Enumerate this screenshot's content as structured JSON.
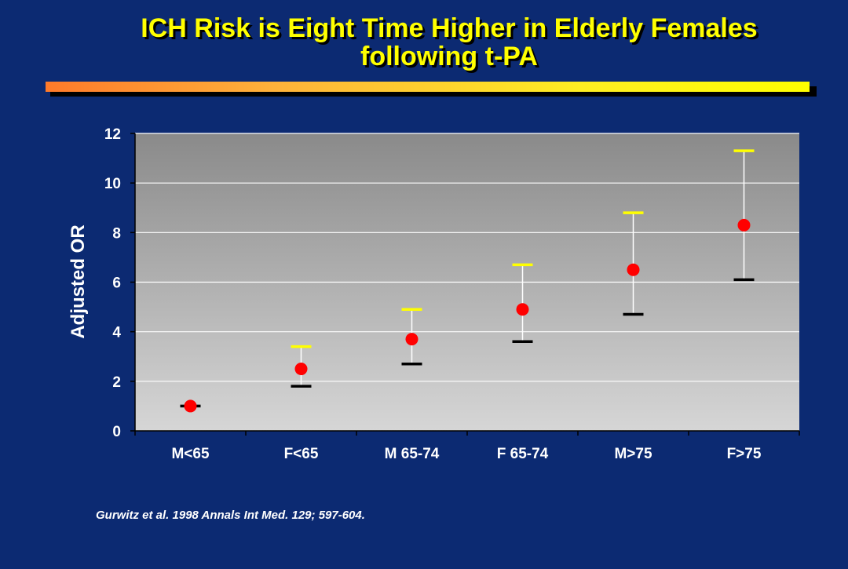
{
  "slide": {
    "title_line1": "ICH Risk is Eight Time Higher in Elderly Females",
    "title_line2": "following t-PA",
    "citation": "Gurwitz et al. 1998 Annals Int Med. 129; 597-604."
  },
  "colors": {
    "background": "#0c2a72",
    "title": "#ffff00",
    "point": "#ff0000",
    "upper_cap": "#ffff00",
    "lower_cap": "#000000",
    "whisker": "#ffffff"
  },
  "chart_data": {
    "type": "scatter",
    "title": "",
    "xlabel": "",
    "ylabel": "Adjusted OR",
    "ylim": [
      0,
      12
    ],
    "yticks": [
      0,
      2,
      4,
      6,
      8,
      10,
      12
    ],
    "grid": true,
    "categories": [
      "M<65",
      "F<65",
      "M 65-74",
      "F 65-74",
      "M>75",
      "F>75"
    ],
    "series": [
      {
        "values": [
          1.0,
          2.5,
          3.7,
          4.9,
          6.5,
          8.3
        ],
        "upper": [
          1.0,
          3.4,
          4.9,
          6.7,
          8.8,
          11.3
        ],
        "lower": [
          1.0,
          1.8,
          2.7,
          3.6,
          4.7,
          6.1
        ]
      }
    ]
  }
}
